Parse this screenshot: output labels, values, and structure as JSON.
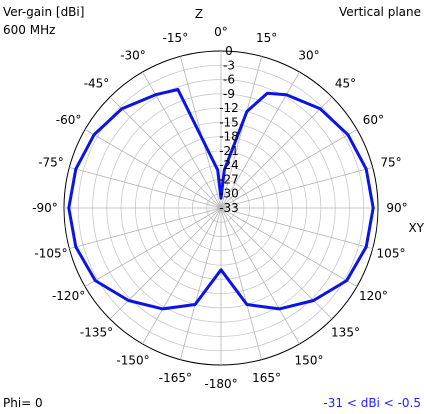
{
  "header": {
    "gain_label": "Ver-gain [dBi]",
    "frequency": "600 MHz",
    "plane": "Vertical plane"
  },
  "footer": {
    "phi": "Phi= 0",
    "range": "-31 < dBi < -0.5"
  },
  "colors": {
    "trace": "#0a14e6",
    "grid": "#c8c8c8",
    "spoke": "#b4b4b4",
    "range_text": "#1f1fff"
  },
  "chart_data": {
    "type": "polar-line",
    "axis_labels": {
      "up": "Z",
      "right": "XY"
    },
    "rlim": [
      -33,
      0
    ],
    "radial_ticks": [
      0,
      -3,
      -6,
      -9,
      -12,
      -15,
      -18,
      -21,
      -24,
      -27,
      -30,
      -33
    ],
    "radial_tick_labels": [
      "0",
      "-3",
      "-6",
      "-9",
      "-12",
      "-15",
      "-18",
      "-21",
      "-24",
      "-27",
      "-30",
      "-33"
    ],
    "angle_ticks": [
      {
        "angle": 0,
        "label": "0°"
      },
      {
        "angle": 15,
        "label": "15°"
      },
      {
        "angle": 30,
        "label": "30°"
      },
      {
        "angle": 45,
        "label": "45°"
      },
      {
        "angle": 60,
        "label": "60°"
      },
      {
        "angle": 75,
        "label": "75°"
      },
      {
        "angle": 90,
        "label": "90°"
      },
      {
        "angle": 105,
        "label": "105°"
      },
      {
        "angle": 120,
        "label": "120°"
      },
      {
        "angle": 135,
        "label": "135°"
      },
      {
        "angle": 150,
        "label": "150°"
      },
      {
        "angle": 165,
        "label": "165°"
      },
      {
        "angle": 180,
        "label": "-180°"
      },
      {
        "angle": -165,
        "label": "-165°"
      },
      {
        "angle": -150,
        "label": "-150°"
      },
      {
        "angle": -135,
        "label": "-135°"
      },
      {
        "angle": -120,
        "label": "-120°"
      },
      {
        "angle": -105,
        "label": "-105°"
      },
      {
        "angle": -90,
        "label": "-90°"
      },
      {
        "angle": -75,
        "label": "-75°"
      },
      {
        "angle": -60,
        "label": "-60°"
      },
      {
        "angle": -45,
        "label": "-45°"
      },
      {
        "angle": -30,
        "label": "-30°"
      },
      {
        "angle": -15,
        "label": "-15°"
      }
    ],
    "grid": true,
    "series": [
      {
        "angles": [
          0,
          5,
          15,
          22,
          30,
          45,
          60,
          75,
          90,
          105,
          120,
          135,
          150,
          165,
          180,
          -165,
          -150,
          -135,
          -120,
          -105,
          -90,
          -75,
          -60,
          -45,
          -30,
          -20,
          -5,
          0
        ],
        "values": [
          -31,
          -25,
          -12,
          -7,
          -5.5,
          -3.5,
          -2.2,
          -1.4,
          -1.0,
          -1.4,
          -2.5,
          -5.5,
          -8.5,
          -12,
          -20,
          -12,
          -8.5,
          -5.5,
          -2.5,
          -1.4,
          -1.0,
          -1.4,
          -2.2,
          -3.5,
          -5.5,
          -6.5,
          -25,
          -31
        ]
      }
    ]
  }
}
